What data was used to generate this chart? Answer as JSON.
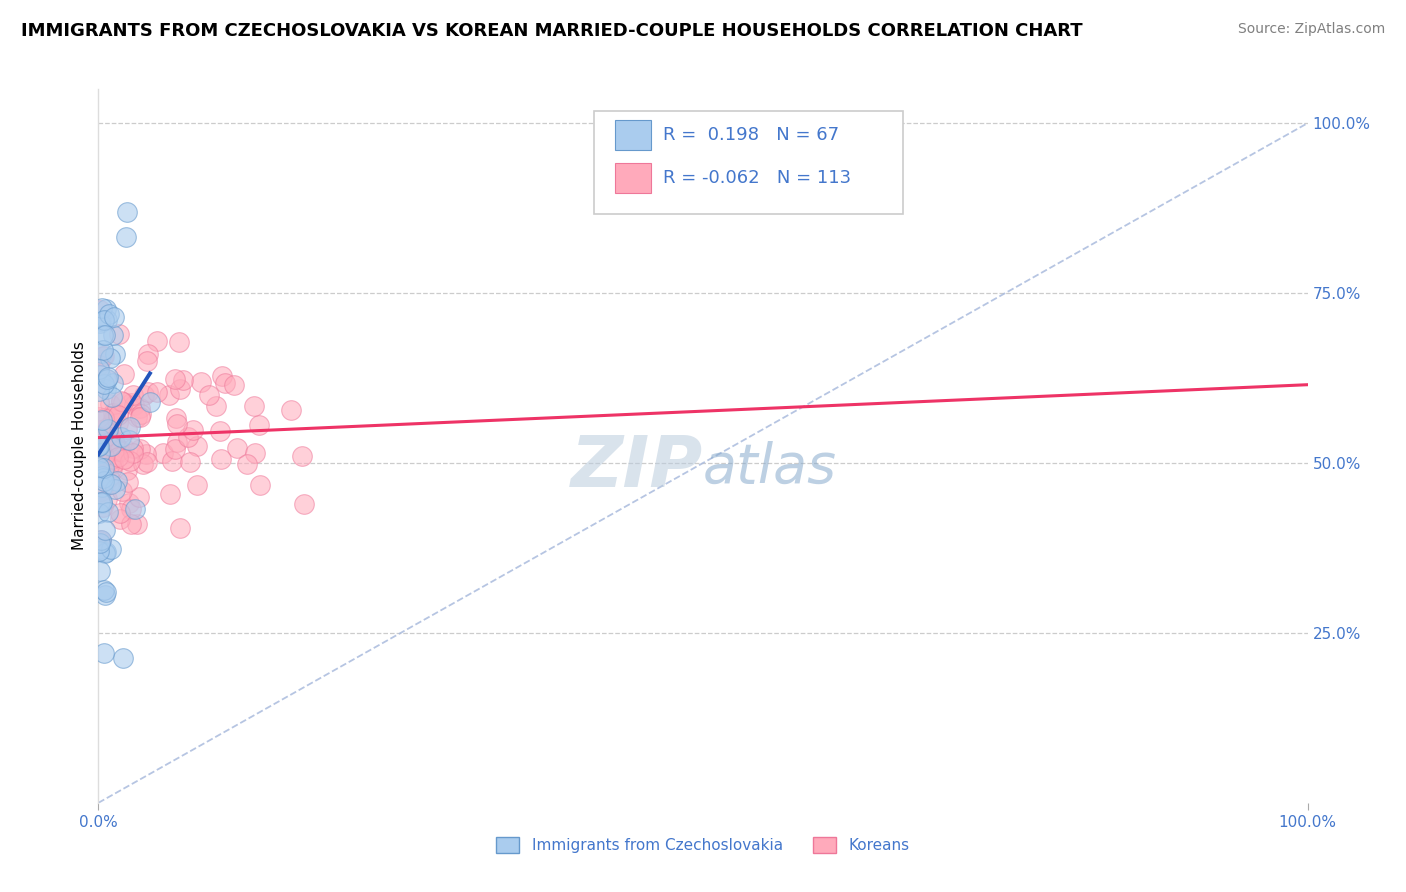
{
  "title": "IMMIGRANTS FROM CZECHOSLOVAKIA VS KOREAN MARRIED-COUPLE HOUSEHOLDS CORRELATION CHART",
  "source": "Source: ZipAtlas.com",
  "ylabel": "Married-couple Households",
  "r_czech": 0.198,
  "n_czech": 67,
  "r_korean": -0.062,
  "n_korean": 113,
  "xlim": [
    0,
    1.0
  ],
  "ylim": [
    0,
    1.05
  ],
  "ytick_labels": [
    "25.0%",
    "50.0%",
    "75.0%",
    "100.0%"
  ],
  "ytick_positions": [
    0.25,
    0.5,
    0.75,
    1.0
  ],
  "grid_color": "#cccccc",
  "diag_color": "#aabbdd",
  "czech_color": "#aaccee",
  "czech_edge": "#6699cc",
  "korean_color": "#ffaabb",
  "korean_edge": "#ee7799",
  "line_czech_color": "#2255bb",
  "line_korean_color": "#ee3366",
  "watermark_color_zip": "#bbccdd",
  "watermark_color_atlas": "#88aacc",
  "title_fontsize": 13,
  "source_fontsize": 10,
  "legend_fontsize": 13,
  "axis_label_fontsize": 11,
  "tick_label_fontsize": 11,
  "tick_color": "#4477cc"
}
